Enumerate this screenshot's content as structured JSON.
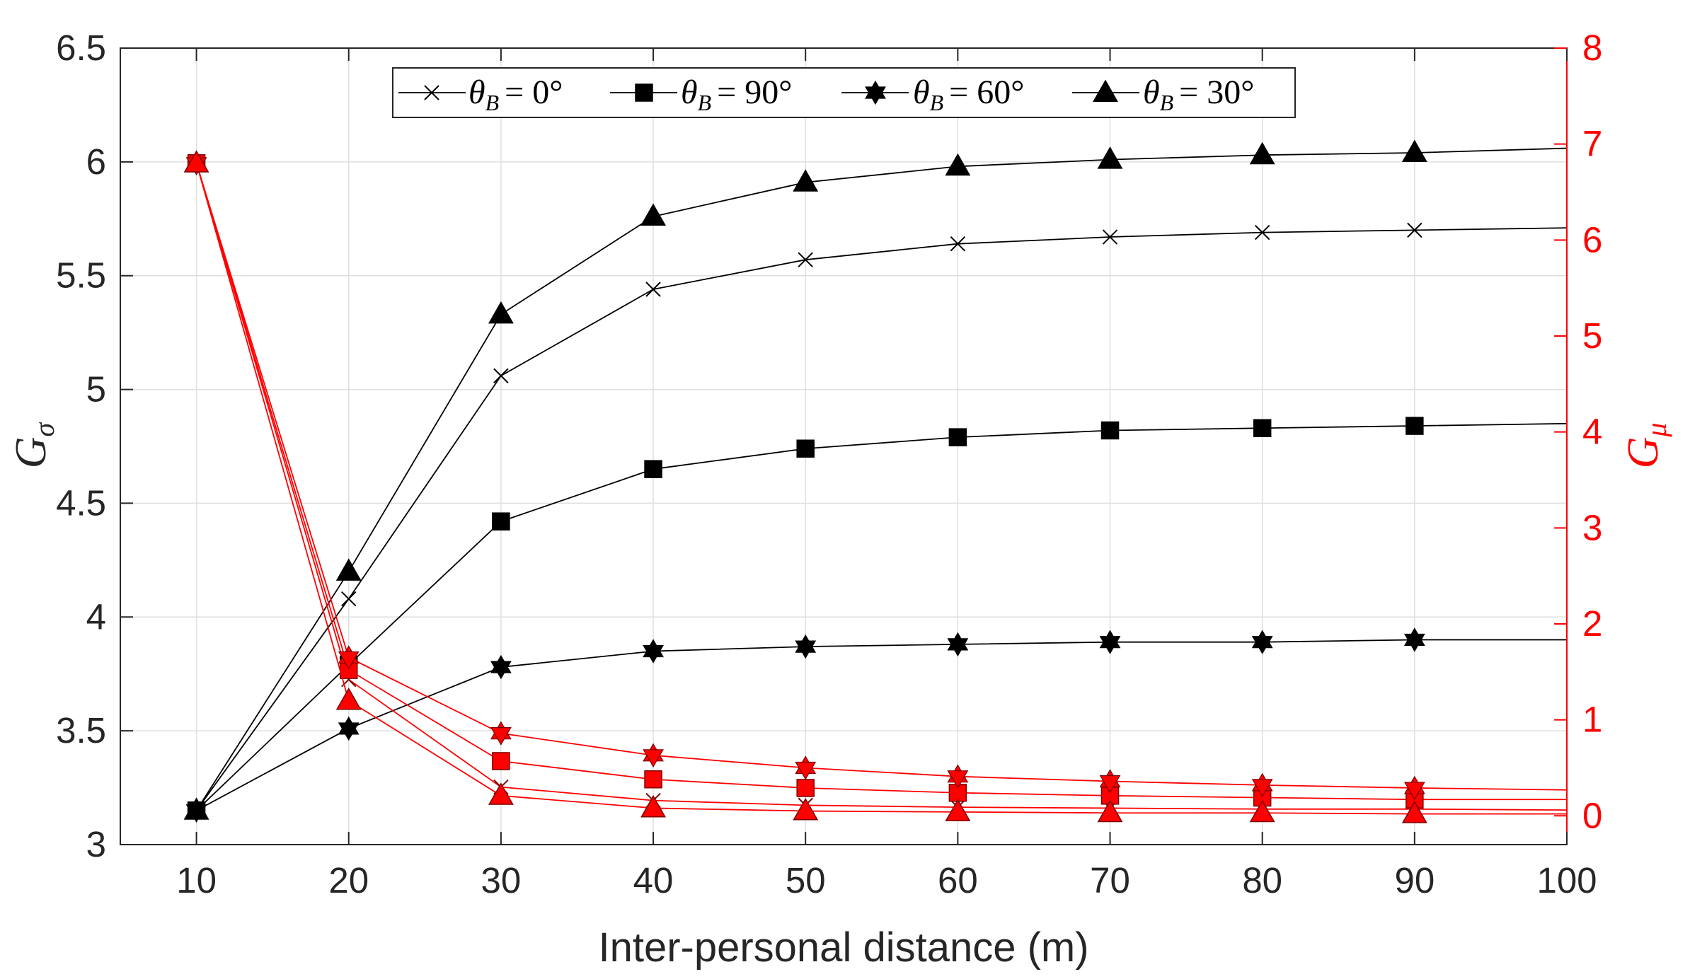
{
  "colors": {
    "left_axis": "#262626",
    "right_axis": "#ff0000",
    "grid": "#dfdfdf",
    "black_series": "#000000",
    "red_series": "#ff0000",
    "red_edge": "#7a0000"
  },
  "chart_data": {
    "type": "line",
    "xlabel": "Inter-personal distance (m)",
    "ylabel_left": {
      "symbol": "G",
      "subscript": "σ"
    },
    "ylabel_right": {
      "symbol": "G",
      "subscript": "μ"
    },
    "xlim": [
      5,
      100
    ],
    "ylim_left": [
      3,
      6.5
    ],
    "ylim_right": [
      -0.3,
      8
    ],
    "x_ticks": [
      10,
      20,
      30,
      40,
      50,
      60,
      70,
      80,
      90,
      100
    ],
    "y_left_ticks": [
      "3",
      "3.5",
      "4",
      "4.5",
      "5",
      "5.5",
      "6",
      "6.5"
    ],
    "y_right_ticks": [
      "0",
      "1",
      "2",
      "3",
      "4",
      "5",
      "6",
      "7",
      "8"
    ],
    "grid": true,
    "legend_position": "top-center",
    "x": [
      10,
      20,
      30,
      40,
      50,
      60,
      70,
      80,
      90,
      100
    ],
    "series_left": [
      {
        "name": "θB = 0°",
        "label_sub": "B",
        "label_rhs": "= 0°",
        "marker": "x",
        "values": [
          3.15,
          4.08,
          5.06,
          5.44,
          5.57,
          5.64,
          5.67,
          5.69,
          5.7,
          5.71
        ]
      },
      {
        "name": "θB = 90°",
        "label_sub": "B",
        "label_rhs": "= 90°",
        "marker": "square",
        "values": [
          3.15,
          3.79,
          4.42,
          4.65,
          4.74,
          4.79,
          4.82,
          4.83,
          4.84,
          4.85
        ]
      },
      {
        "name": "θB = 60°",
        "label_sub": "B",
        "label_rhs": "= 60°",
        "marker": "hexagram",
        "values": [
          3.15,
          3.51,
          3.78,
          3.85,
          3.87,
          3.88,
          3.89,
          3.89,
          3.9,
          3.9
        ]
      },
      {
        "name": "θB = 30°",
        "label_sub": "B",
        "label_rhs": "= 30°",
        "marker": "triangle",
        "values": [
          3.15,
          4.2,
          5.33,
          5.76,
          5.91,
          5.98,
          6.01,
          6.03,
          6.04,
          6.06
        ]
      }
    ],
    "series_right": [
      {
        "name": "θB = 0°",
        "marker": "x",
        "values": [
          6.8,
          1.42,
          0.3,
          0.16,
          0.11,
          0.09,
          0.08,
          0.07,
          0.07,
          0.06
        ]
      },
      {
        "name": "θB = 90°",
        "marker": "square",
        "values": [
          6.8,
          1.52,
          0.57,
          0.38,
          0.29,
          0.24,
          0.21,
          0.19,
          0.17,
          0.17
        ]
      },
      {
        "name": "θB = 60°",
        "marker": "hexagram",
        "values": [
          6.8,
          1.65,
          0.86,
          0.63,
          0.5,
          0.41,
          0.36,
          0.32,
          0.29,
          0.27
        ]
      },
      {
        "name": "θB = 30°",
        "marker": "triangle",
        "values": [
          6.8,
          1.2,
          0.21,
          0.08,
          0.05,
          0.04,
          0.03,
          0.03,
          0.02,
          0.02
        ]
      }
    ]
  }
}
